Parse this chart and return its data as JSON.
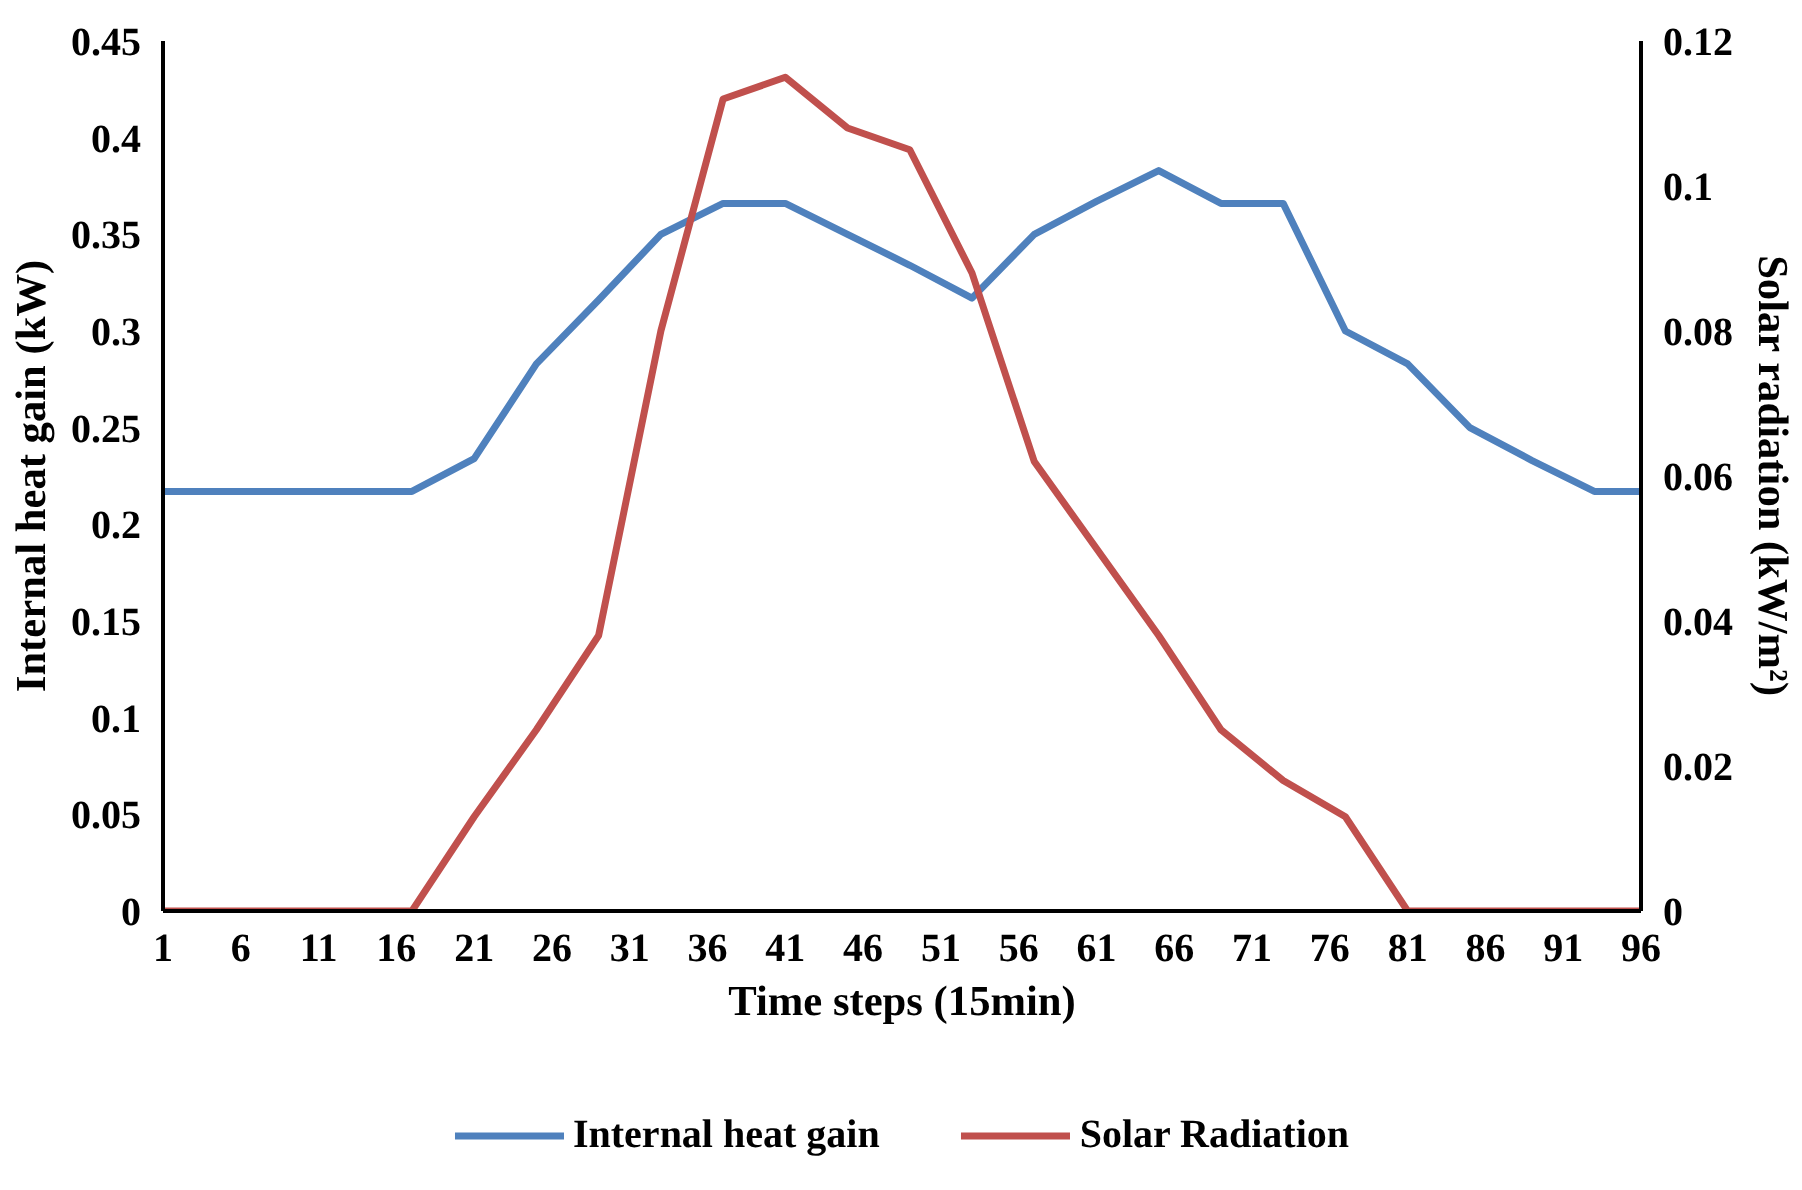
{
  "chart_data": {
    "type": "line",
    "xlabel": "Time steps (15min)",
    "ylabel": "Internal heat gain (kW)",
    "y2label": "Solar radiation (kW/m²)",
    "x": [
      1,
      5,
      9,
      13,
      17,
      21,
      25,
      29,
      33,
      37,
      41,
      45,
      49,
      53,
      57,
      61,
      65,
      69,
      73,
      77,
      81,
      85,
      89,
      93,
      96
    ],
    "series": [
      {
        "name": "Internal heat gain",
        "color": "#4f81bd",
        "values": [
          0.217,
          0.217,
          0.217,
          0.217,
          0.217,
          0.234,
          0.283,
          0.316,
          0.35,
          0.366,
          0.366,
          0.35,
          0.334,
          0.317,
          0.35,
          0.367,
          0.383,
          0.366,
          0.366,
          0.3,
          0.283,
          0.25,
          0.233,
          0.217,
          0.217
        ]
      },
      {
        "name": "Solar Radiation",
        "color": "#c0504d",
        "axis": "y2",
        "values": [
          0,
          0,
          0,
          0,
          0,
          0.013,
          0.025,
          0.038,
          0.08,
          0.112,
          0.115,
          0.108,
          0.105,
          0.088,
          0.062,
          0.05,
          0.038,
          0.025,
          0.018,
          0.013,
          0,
          0,
          0,
          0,
          0
        ]
      }
    ],
    "xlim": [
      1,
      96
    ],
    "xticks": [
      1,
      6,
      11,
      16,
      21,
      26,
      31,
      36,
      41,
      46,
      51,
      56,
      61,
      66,
      71,
      76,
      81,
      86,
      91,
      96
    ],
    "ylim": [
      0,
      0.45
    ],
    "yticks": [
      0,
      0.05,
      0.1,
      0.15,
      0.2,
      0.25,
      0.3,
      0.35,
      0.4,
      0.45
    ],
    "y2lim": [
      0,
      0.12
    ],
    "y2ticks": [
      0,
      0.02,
      0.04,
      0.06,
      0.08,
      0.1,
      0.12
    ],
    "grid": false,
    "legend": "bottom",
    "marker": "none",
    "line_style": "solid"
  }
}
